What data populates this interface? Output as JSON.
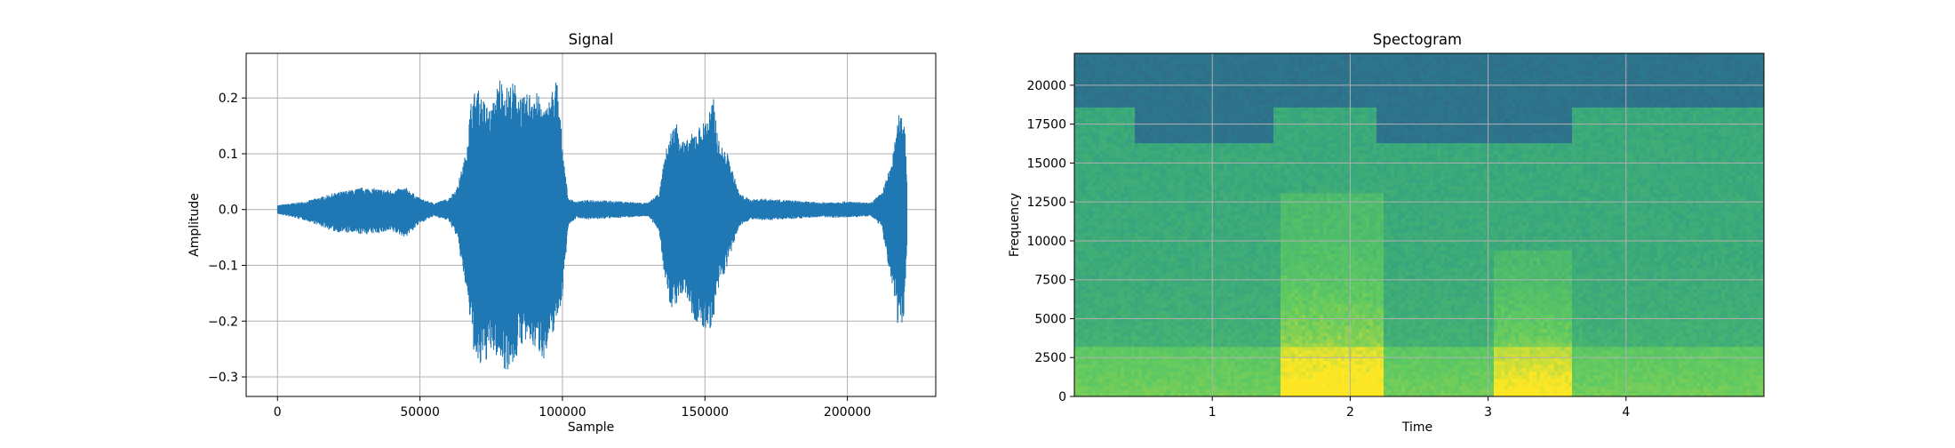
{
  "chart_data": [
    {
      "type": "line",
      "title": "Signal",
      "xlabel": "Sample",
      "ylabel": "Amplitude",
      "xlim": [
        -11000,
        231000
      ],
      "ylim": [
        -0.335,
        0.28
      ],
      "xticks": [
        0,
        50000,
        100000,
        150000,
        200000
      ],
      "xtick_labels": [
        "0",
        "50000",
        "100000",
        "150000",
        "200000"
      ],
      "yticks": [
        -0.3,
        -0.2,
        -0.1,
        0.0,
        0.1,
        0.2
      ],
      "ytick_labels": [
        "−0.3",
        "−0.2",
        "−0.1",
        "0.0",
        "0.1",
        "0.2"
      ],
      "grid": true,
      "color": "#1f77b4",
      "series": [
        {
          "x": [
            0,
            10000,
            20000,
            30000,
            40000,
            45000,
            50000,
            55000,
            60000,
            63000,
            66000,
            68000,
            70000,
            72000,
            75000,
            78000,
            80000,
            83000,
            86000,
            90000,
            94000,
            98000,
            100000,
            102000,
            105000,
            110000,
            120000,
            130000,
            134000,
            136000,
            138000,
            140000,
            143000,
            146000,
            150000,
            153000,
            155000,
            158000,
            162000,
            166000,
            170000,
            180000,
            190000,
            200000,
            208000,
            212000,
            214000,
            216000,
            218000,
            220000,
            221000
          ],
          "upper": [
            0.008,
            0.015,
            0.03,
            0.04,
            0.035,
            0.04,
            0.02,
            0.012,
            0.02,
            0.04,
            0.1,
            0.2,
            0.22,
            0.2,
            0.18,
            0.24,
            0.22,
            0.23,
            0.2,
            0.22,
            0.18,
            0.24,
            0.12,
            0.02,
            0.015,
            0.018,
            0.015,
            0.012,
            0.03,
            0.1,
            0.14,
            0.16,
            0.12,
            0.14,
            0.16,
            0.2,
            0.12,
            0.1,
            0.03,
            0.018,
            0.02,
            0.017,
            0.013,
            0.015,
            0.012,
            0.03,
            0.06,
            0.1,
            0.17,
            0.175,
            0.05
          ],
          "lower": [
            -0.008,
            -0.02,
            -0.04,
            -0.045,
            -0.04,
            -0.05,
            -0.025,
            -0.012,
            -0.02,
            -0.05,
            -0.14,
            -0.22,
            -0.3,
            -0.28,
            -0.26,
            -0.27,
            -0.29,
            -0.28,
            -0.24,
            -0.25,
            -0.27,
            -0.2,
            -0.16,
            -0.03,
            -0.015,
            -0.018,
            -0.015,
            -0.012,
            -0.04,
            -0.13,
            -0.18,
            -0.17,
            -0.15,
            -0.2,
            -0.22,
            -0.21,
            -0.14,
            -0.1,
            -0.03,
            -0.018,
            -0.02,
            -0.017,
            -0.014,
            -0.015,
            -0.012,
            -0.03,
            -0.1,
            -0.14,
            -0.22,
            -0.19,
            -0.06
          ]
        }
      ]
    },
    {
      "type": "heatmap",
      "title": "Spectogram",
      "xlabel": "Time",
      "ylabel": "Frequency",
      "xlim": [
        0,
        5
      ],
      "ylim": [
        0,
        22050
      ],
      "xticks": [
        1,
        2,
        3,
        4
      ],
      "xtick_labels": [
        "1",
        "2",
        "3",
        "4"
      ],
      "yticks": [
        0,
        2500,
        5000,
        7500,
        10000,
        12500,
        15000,
        17500,
        20000
      ],
      "ytick_labels": [
        "0",
        "2500",
        "5000",
        "7500",
        "10000",
        "12500",
        "15000",
        "17500",
        "20000"
      ],
      "grid": true,
      "colormap": "viridis",
      "lowpass_segments": [
        {
          "t0": 0.0,
          "t1": 0.45,
          "cutoff": 18700
        },
        {
          "t0": 0.45,
          "t1": 1.45,
          "cutoff": 16200
        },
        {
          "t0": 1.45,
          "t1": 2.2,
          "cutoff": 18700
        },
        {
          "t0": 2.2,
          "t1": 3.1,
          "cutoff": 18700
        },
        {
          "t0": 3.1,
          "t1": 3.6,
          "cutoff": 16200
        },
        {
          "t0": 3.6,
          "t1": 5.0,
          "cutoff": 18700
        }
      ],
      "notes_dropout": [
        {
          "t0": 2.2,
          "t1": 3.1,
          "cutoff": 16200
        }
      ],
      "loud_regions": [
        {
          "t0": 1.5,
          "t1": 2.25,
          "f_max": 13000,
          "strength": 1.0
        },
        {
          "t0": 3.05,
          "t1": 3.6,
          "f_max": 9500,
          "strength": 0.9
        }
      ]
    }
  ]
}
